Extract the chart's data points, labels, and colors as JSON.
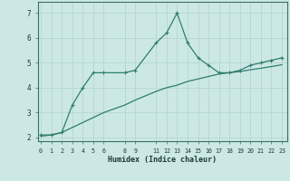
{
  "xlabel": "Humidex (Indice chaleur)",
  "bg_color": "#cce8e4",
  "line_color": "#2e7d6e",
  "grid_color": "#b8d8d4",
  "line1_x": [
    0,
    1,
    2,
    3,
    4,
    5,
    6,
    8,
    9,
    11,
    12,
    13,
    14,
    15,
    16,
    17,
    18,
    19,
    20,
    21,
    22,
    23
  ],
  "line1_y": [
    2.1,
    2.1,
    2.2,
    3.3,
    4.0,
    4.6,
    4.6,
    4.6,
    4.7,
    5.8,
    6.2,
    7.0,
    5.8,
    5.2,
    4.9,
    4.6,
    4.6,
    4.7,
    4.9,
    5.0,
    5.1,
    5.2
  ],
  "line2_x": [
    0,
    1,
    2,
    3,
    4,
    5,
    6,
    8,
    9,
    11,
    12,
    13,
    14,
    15,
    16,
    17,
    18,
    19,
    20,
    21,
    22,
    23
  ],
  "line2_y": [
    2.05,
    2.1,
    2.2,
    2.4,
    2.6,
    2.8,
    3.0,
    3.3,
    3.5,
    3.85,
    4.0,
    4.1,
    4.25,
    4.35,
    4.45,
    4.55,
    4.6,
    4.65,
    4.72,
    4.78,
    4.85,
    4.92
  ],
  "ylim": [
    1.85,
    7.45
  ],
  "xlim": [
    -0.3,
    23.5
  ],
  "yticks": [
    2,
    3,
    4,
    5,
    6,
    7
  ],
  "xticks": [
    0,
    1,
    2,
    3,
    4,
    5,
    6,
    8,
    9,
    11,
    12,
    13,
    14,
    15,
    16,
    17,
    18,
    19,
    20,
    21,
    22,
    23
  ],
  "xtick_labels": [
    "0",
    "1",
    "2",
    "3",
    "4",
    "5",
    "6",
    "8",
    "9",
    "11",
    "12",
    "13",
    "14",
    "15",
    "16",
    "17",
    "18",
    "19",
    "20",
    "21",
    "22",
    "23"
  ]
}
